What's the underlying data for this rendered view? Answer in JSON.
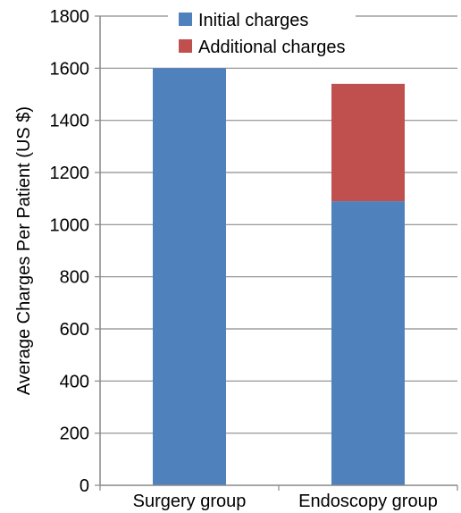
{
  "chart_data": {
    "type": "bar",
    "stacked": true,
    "title": "",
    "xlabel": "",
    "ylabel": "Average Charges Per Patient (US $)",
    "ylim": [
      0,
      1800
    ],
    "yticks": [
      0,
      200,
      400,
      600,
      800,
      1000,
      1200,
      1400,
      1600,
      1800
    ],
    "grid": true,
    "legend_position": "top",
    "categories": [
      "Surgery group",
      "Endoscopy group"
    ],
    "series": [
      {
        "name": "Initial charges",
        "color": "#4f81bd",
        "values": [
          1600,
          1090
        ]
      },
      {
        "name": "Additional charges",
        "color": "#c0504d",
        "values": [
          0,
          450
        ]
      }
    ]
  }
}
